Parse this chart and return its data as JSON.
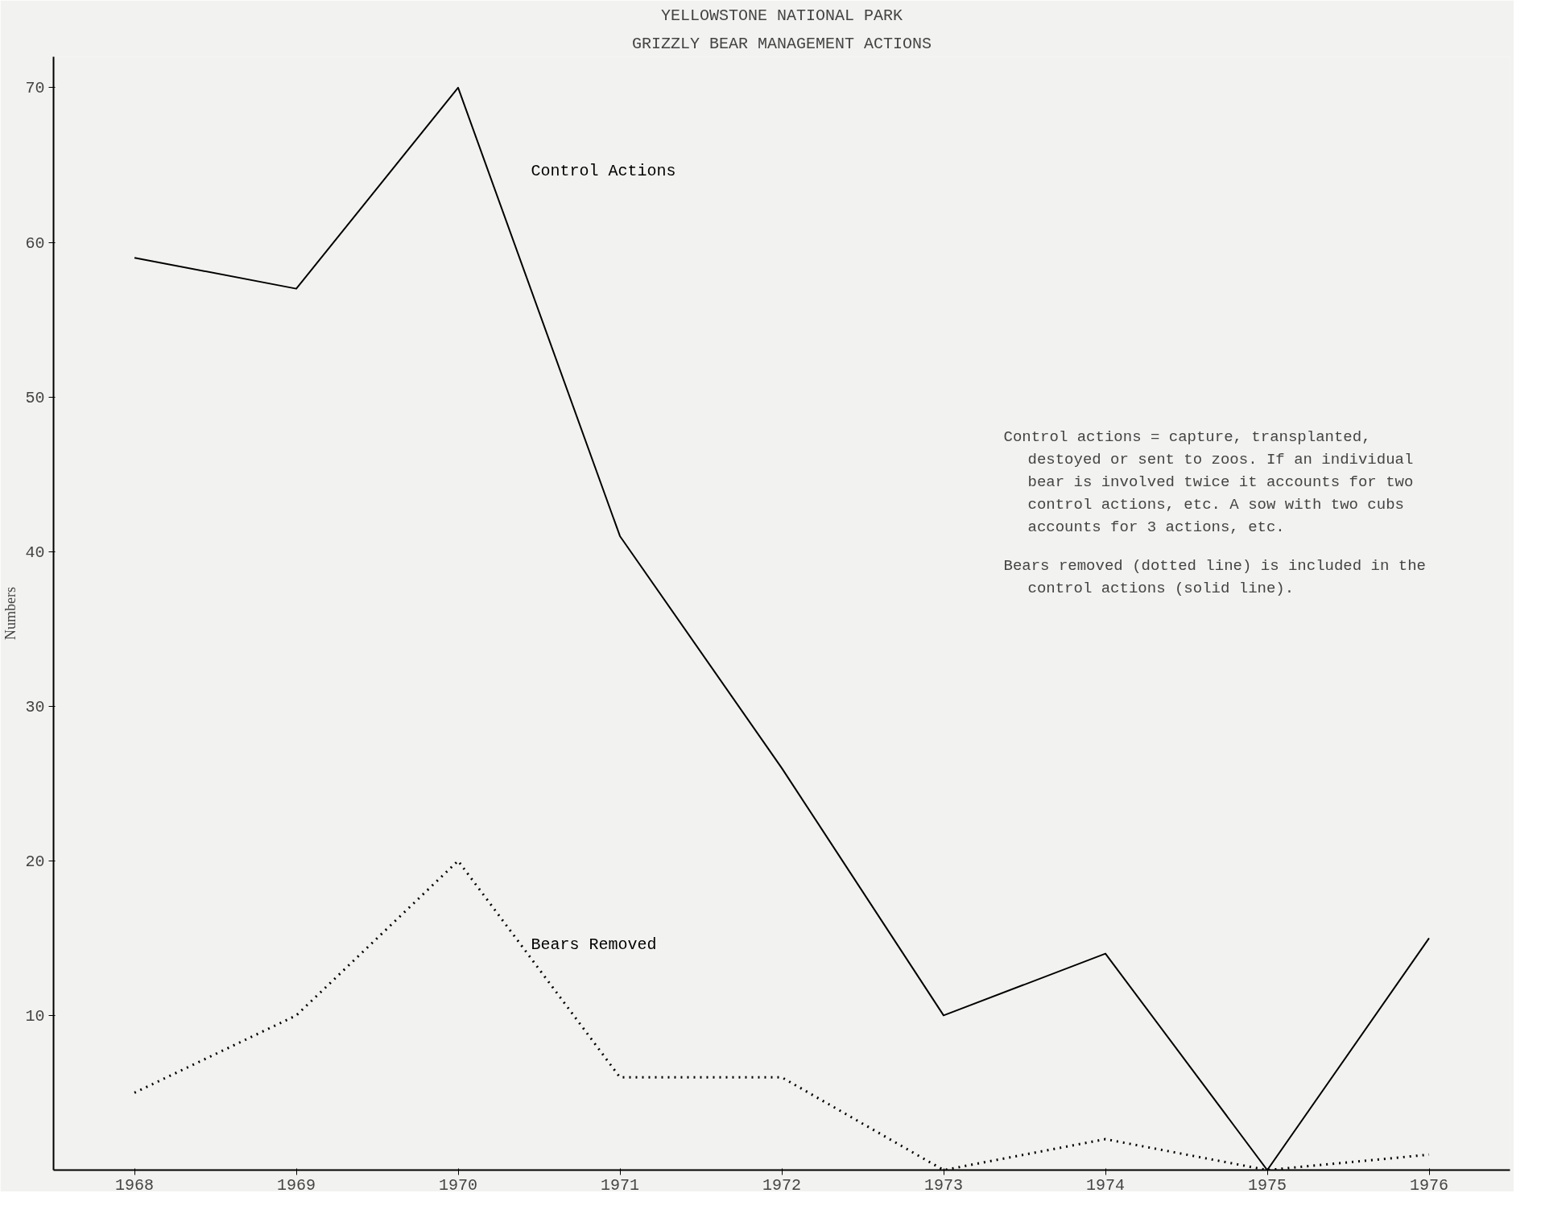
{
  "chart_data": {
    "type": "line",
    "title": "YELLOWSTONE NATIONAL PARK",
    "subtitle": "GRIZZLY BEAR MANAGEMENT ACTIONS",
    "ylabel": "Numbers",
    "categories": [
      "1968",
      "1969",
      "1970",
      "1971",
      "1972",
      "1973",
      "1974",
      "1975",
      "1976"
    ],
    "series": [
      {
        "name": "Control Actions",
        "color": "#000000",
        "line_style": "solid",
        "values": [
          59,
          57,
          70,
          41,
          26,
          10,
          14,
          0,
          15
        ]
      },
      {
        "name": "Bears Removed",
        "color": "#000000",
        "line_style": "dotted",
        "values": [
          5,
          10,
          20,
          6,
          6,
          0,
          2,
          0,
          1
        ]
      }
    ],
    "ylim": [
      0,
      72
    ],
    "yticks": [
      10,
      20,
      30,
      40,
      50,
      60,
      70
    ],
    "grid": false,
    "marker": "none",
    "annotations": [
      "Control actions = capture, transplanted, destoyed or sent to zoos. If an individual bear is involved twice it accounts for two control actions, etc. A sow with two cubs accounts for 3 actions, etc.",
      "Bears removed (dotted line) is included in the control actions (solid line)."
    ]
  }
}
